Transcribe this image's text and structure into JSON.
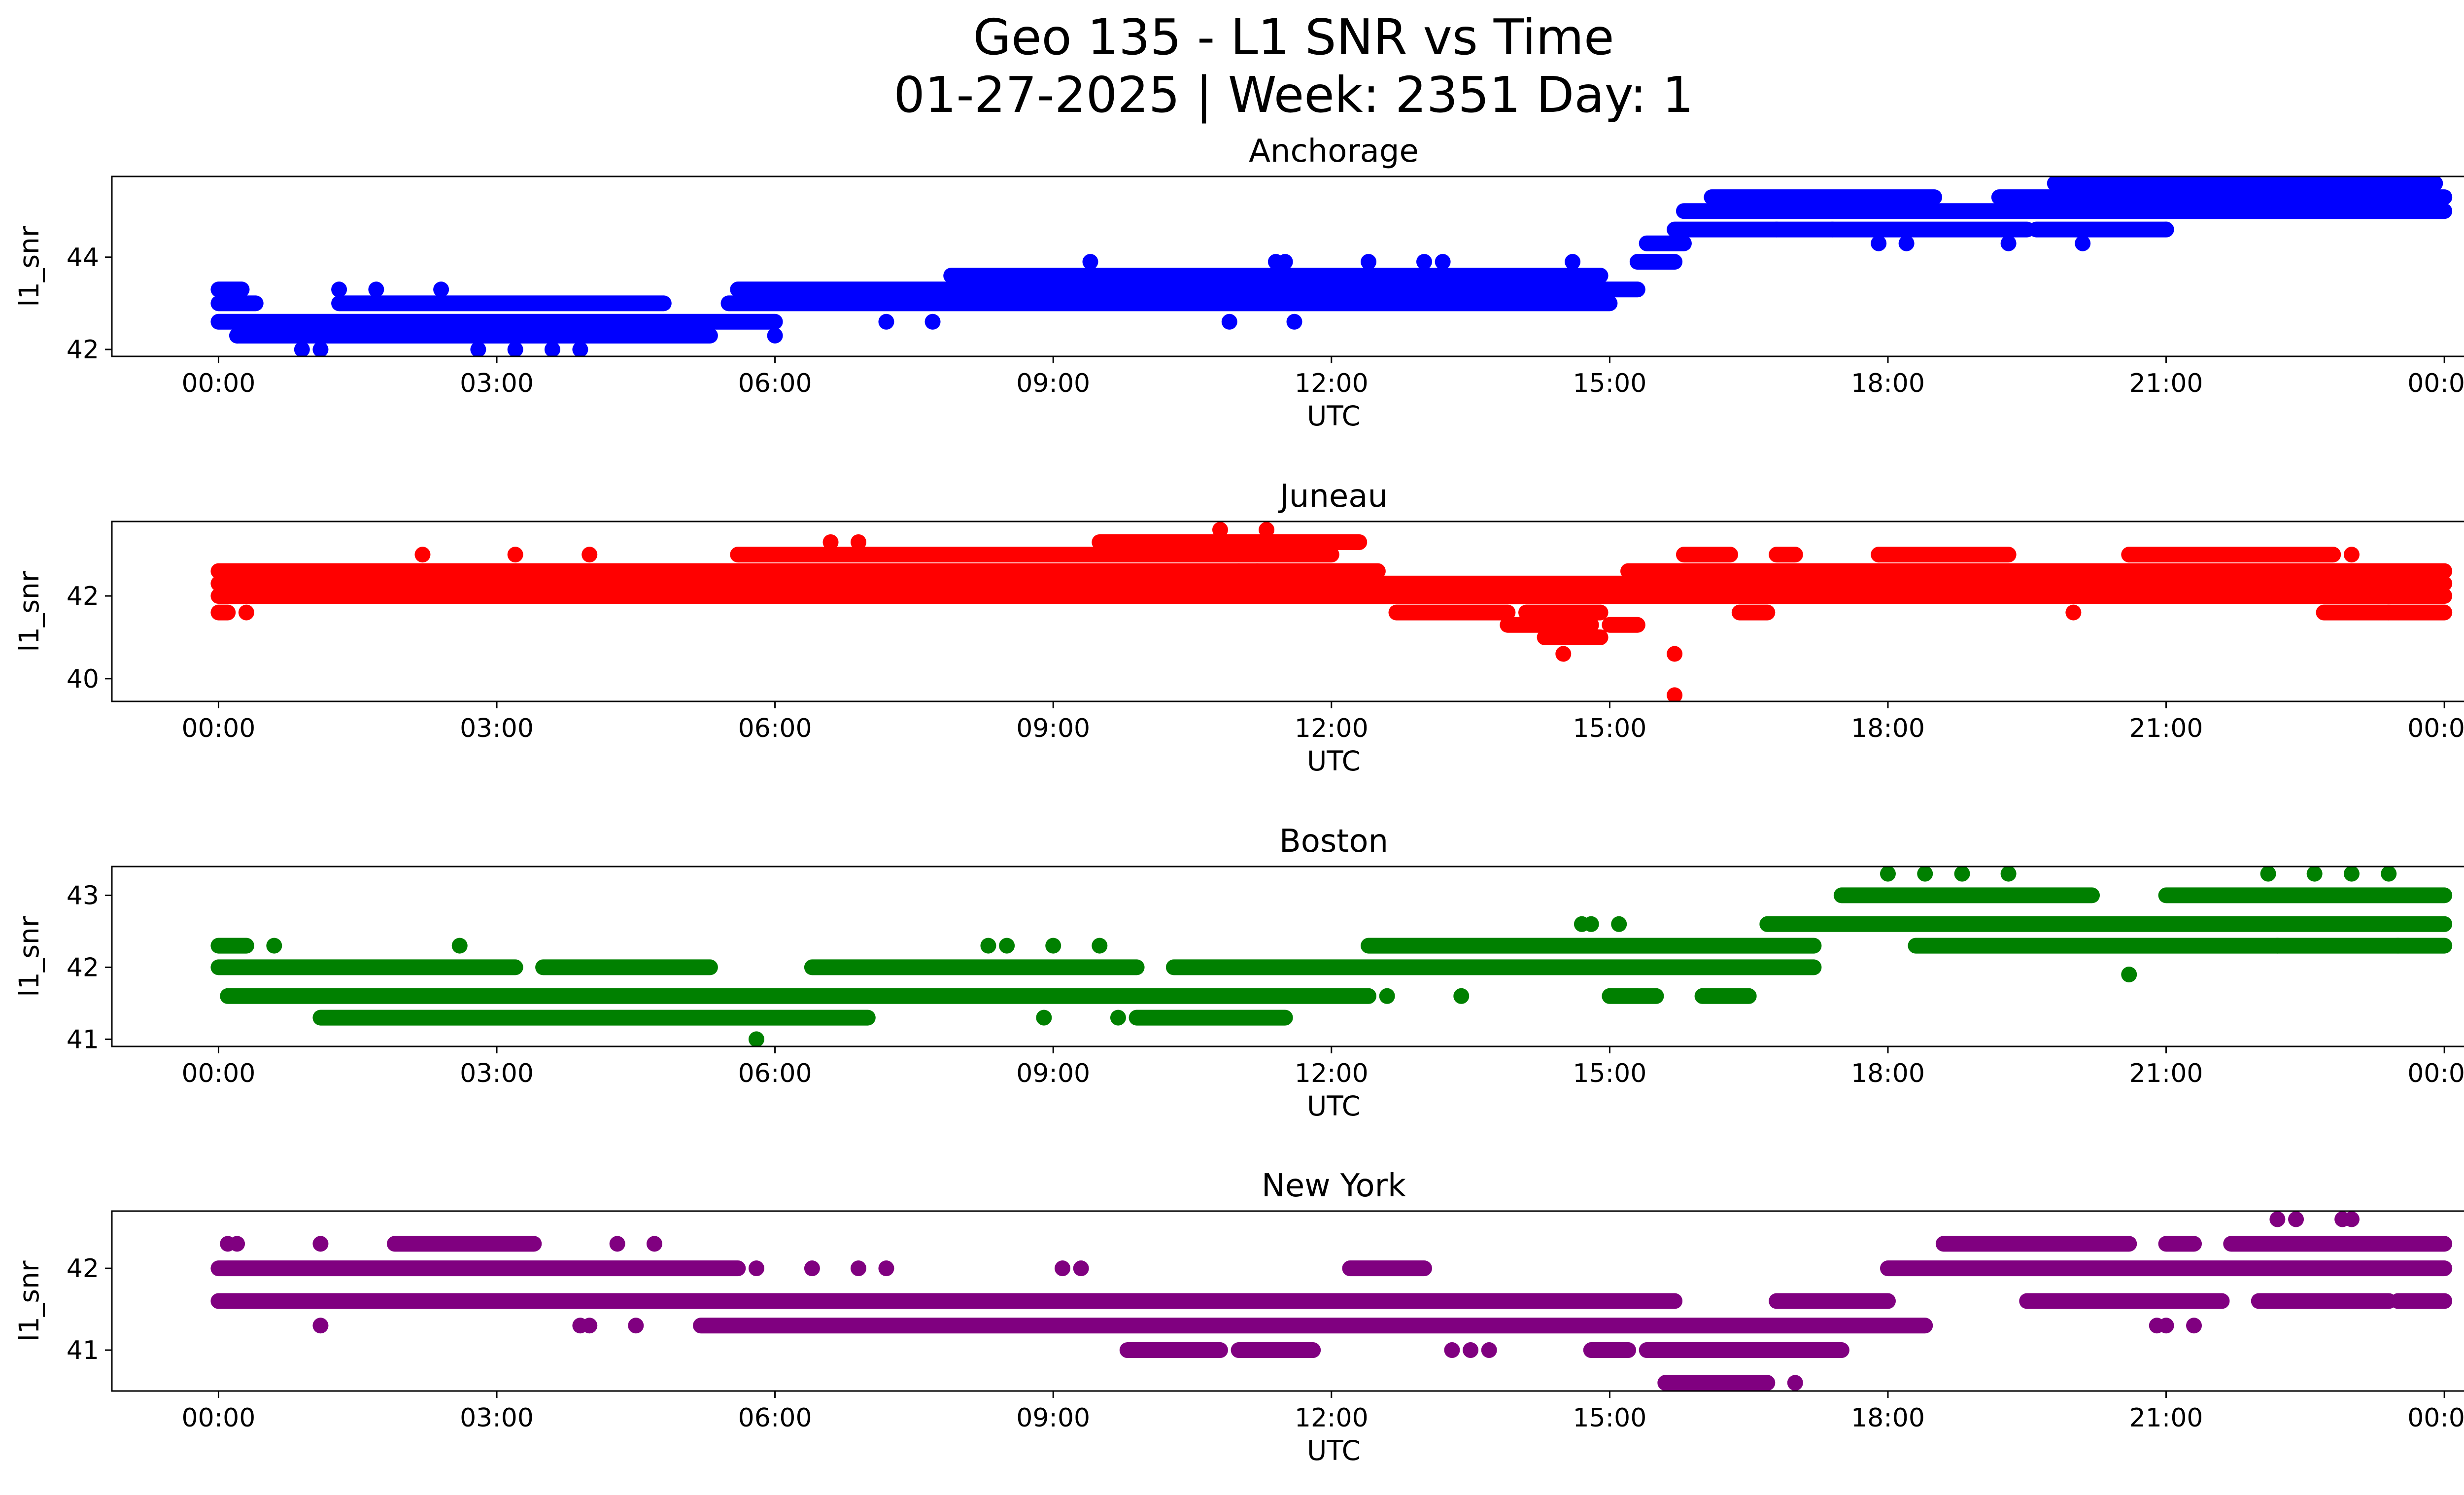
{
  "figure": {
    "title_line1": "Geo 135 - L1 SNR vs Time",
    "title_line2": "01-27-2025 | Week: 2351 Day: 1"
  },
  "chart_data": [
    {
      "type": "scatter",
      "title": "Anchorage",
      "xlabel": "UTC",
      "ylabel": "l1_snr",
      "color": "#0000ff",
      "xlim_hours": [
        -1.15,
        25.2
      ],
      "ylim": [
        41.85,
        45.75
      ],
      "xticks": [
        0,
        3,
        6,
        9,
        12,
        15,
        18,
        21,
        24
      ],
      "xtick_labels": [
        "00:00",
        "03:00",
        "06:00",
        "09:00",
        "12:00",
        "15:00",
        "18:00",
        "21:00",
        "00:00"
      ],
      "yticks": [
        42,
        44
      ],
      "ytick_labels": [
        "42",
        "44"
      ],
      "bands": [
        {
          "y": 43.3,
          "ranges": [
            [
              0.0,
              0.25
            ]
          ]
        },
        {
          "y": 43.0,
          "ranges": [
            [
              0.0,
              0.4
            ],
            [
              1.3,
              4.8
            ],
            [
              5.5,
              15.0
            ]
          ]
        },
        {
          "y": 42.6,
          "ranges": [
            [
              0.0,
              6.0
            ]
          ]
        },
        {
          "y": 42.3,
          "ranges": [
            [
              0.2,
              5.3
            ]
          ]
        },
        {
          "y": 43.3,
          "ranges": [
            [
              5.6,
              15.3
            ]
          ]
        },
        {
          "y": 43.6,
          "ranges": [
            [
              7.9,
              14.9
            ]
          ]
        },
        {
          "y": 43.9,
          "ranges": [
            [
              15.3,
              15.7
            ]
          ]
        },
        {
          "y": 44.3,
          "ranges": [
            [
              15.4,
              15.8
            ]
          ]
        },
        {
          "y": 44.6,
          "ranges": [
            [
              15.7,
              19.5
            ],
            [
              19.6,
              21.0
            ]
          ]
        },
        {
          "y": 45.0,
          "ranges": [
            [
              15.8,
              24.0
            ]
          ]
        },
        {
          "y": 45.3,
          "ranges": [
            [
              16.1,
              18.5
            ],
            [
              19.2,
              24.0
            ]
          ]
        },
        {
          "y": 45.6,
          "ranges": [
            [
              19.8,
              23.9
            ]
          ]
        }
      ],
      "points": [
        [
          0.9,
          42.0
        ],
        [
          1.1,
          42.0
        ],
        [
          2.8,
          42.0
        ],
        [
          3.2,
          42.0
        ],
        [
          3.6,
          42.0
        ],
        [
          3.9,
          42.0
        ],
        [
          0.2,
          42.3
        ],
        [
          6.0,
          42.3
        ],
        [
          7.2,
          42.6
        ],
        [
          7.7,
          42.6
        ],
        [
          1.3,
          43.3
        ],
        [
          1.7,
          43.3
        ],
        [
          2.4,
          43.3
        ],
        [
          9.4,
          43.9
        ],
        [
          11.4,
          43.9
        ],
        [
          11.5,
          43.9
        ],
        [
          12.4,
          43.9
        ],
        [
          13.0,
          43.9
        ],
        [
          13.2,
          43.9
        ],
        [
          14.6,
          43.9
        ],
        [
          10.9,
          42.6
        ],
        [
          11.6,
          42.6
        ],
        [
          16.8,
          44.6
        ],
        [
          17.4,
          44.6
        ],
        [
          17.9,
          44.3
        ],
        [
          18.2,
          44.3
        ],
        [
          19.3,
          44.3
        ],
        [
          20.1,
          44.3
        ],
        [
          21.0,
          44.6
        ]
      ]
    },
    {
      "type": "scatter",
      "title": "Juneau",
      "xlabel": "UTC",
      "ylabel": "l1_snr",
      "color": "#ff0000",
      "xlim_hours": [
        -1.15,
        25.2
      ],
      "ylim": [
        39.45,
        43.8
      ],
      "xticks": [
        0,
        3,
        6,
        9,
        12,
        15,
        18,
        21,
        24
      ],
      "xtick_labels": [
        "00:00",
        "03:00",
        "06:00",
        "09:00",
        "12:00",
        "15:00",
        "18:00",
        "21:00",
        "00:00"
      ],
      "yticks": [
        40,
        42
      ],
      "ytick_labels": [
        "40",
        "42"
      ],
      "bands": [
        {
          "y": 41.6,
          "ranges": [
            [
              0.0,
              0.1
            ],
            [
              12.7,
              13.9
            ],
            [
              14.1,
              14.9
            ],
            [
              16.4,
              16.7
            ],
            [
              22.7,
              24.0
            ]
          ]
        },
        {
          "y": 42.0,
          "ranges": [
            [
              0.0,
              24.0
            ]
          ]
        },
        {
          "y": 42.3,
          "ranges": [
            [
              0.0,
              24.0
            ]
          ]
        },
        {
          "y": 42.6,
          "ranges": [
            [
              0.0,
              12.5
            ],
            [
              15.2,
              24.0
            ]
          ]
        },
        {
          "y": 43.0,
          "ranges": [
            [
              5.6,
              12.0
            ],
            [
              15.8,
              16.3
            ],
            [
              16.8,
              17.0
            ],
            [
              17.9,
              19.3
            ],
            [
              20.6,
              22.8
            ]
          ]
        },
        {
          "y": 43.3,
          "ranges": [
            [
              9.5,
              12.3
            ]
          ]
        },
        {
          "y": 41.3,
          "ranges": [
            [
              13.9,
              14.8
            ],
            [
              15.0,
              15.3
            ]
          ]
        },
        {
          "y": 41.0,
          "ranges": [
            [
              14.3,
              14.9
            ]
          ]
        }
      ],
      "points": [
        [
          0.3,
          41.6
        ],
        [
          2.2,
          43.0
        ],
        [
          3.2,
          43.0
        ],
        [
          4.0,
          43.0
        ],
        [
          6.6,
          43.3
        ],
        [
          6.9,
          43.3
        ],
        [
          10.8,
          43.6
        ],
        [
          11.3,
          43.6
        ],
        [
          11.0,
          42.6
        ],
        [
          11.2,
          42.6
        ],
        [
          14.5,
          40.6
        ],
        [
          15.7,
          40.6
        ],
        [
          15.7,
          39.6
        ],
        [
          20.0,
          41.6
        ],
        [
          23.4,
          41.6
        ],
        [
          23.0,
          43.0
        ]
      ]
    },
    {
      "type": "scatter",
      "title": "Boston",
      "xlabel": "UTC",
      "ylabel": "l1_snr",
      "color": "#008000",
      "xlim_hours": [
        -1.15,
        25.2
      ],
      "ylim": [
        40.9,
        43.4
      ],
      "xticks": [
        0,
        3,
        6,
        9,
        12,
        15,
        18,
        21,
        24
      ],
      "xtick_labels": [
        "00:00",
        "03:00",
        "06:00",
        "09:00",
        "12:00",
        "15:00",
        "18:00",
        "21:00",
        "00:00"
      ],
      "yticks": [
        41,
        42,
        43
      ],
      "ytick_labels": [
        "41",
        "42",
        "43"
      ],
      "bands": [
        {
          "y": 42.3,
          "ranges": [
            [
              0.0,
              0.3
            ],
            [
              12.4,
              17.2
            ],
            [
              18.3,
              24.0
            ]
          ]
        },
        {
          "y": 42.0,
          "ranges": [
            [
              0.0,
              3.2
            ],
            [
              3.5,
              5.3
            ],
            [
              6.4,
              9.9
            ],
            [
              10.3,
              17.2
            ]
          ]
        },
        {
          "y": 41.6,
          "ranges": [
            [
              0.1,
              12.4
            ],
            [
              15.0,
              15.5
            ],
            [
              16.0,
              16.5
            ]
          ]
        },
        {
          "y": 41.3,
          "ranges": [
            [
              1.1,
              7.0
            ],
            [
              9.9,
              11.5
            ]
          ]
        },
        {
          "y": 42.6,
          "ranges": [
            [
              16.7,
              24.0
            ]
          ]
        },
        {
          "y": 43.0,
          "ranges": [
            [
              17.5,
              20.2
            ],
            [
              21.0,
              24.0
            ]
          ]
        }
      ],
      "points": [
        [
          0.6,
          42.3
        ],
        [
          2.6,
          42.3
        ],
        [
          8.3,
          42.3
        ],
        [
          8.5,
          42.3
        ],
        [
          9.0,
          42.3
        ],
        [
          9.5,
          42.3
        ],
        [
          5.8,
          41.0
        ],
        [
          8.9,
          41.3
        ],
        [
          9.7,
          41.3
        ],
        [
          12.6,
          41.6
        ],
        [
          13.4,
          41.6
        ],
        [
          14.7,
          42.6
        ],
        [
          14.8,
          42.6
        ],
        [
          15.1,
          42.6
        ],
        [
          18.0,
          43.3
        ],
        [
          18.4,
          43.3
        ],
        [
          18.8,
          43.3
        ],
        [
          19.3,
          43.3
        ],
        [
          22.1,
          43.3
        ],
        [
          22.6,
          43.3
        ],
        [
          23.0,
          43.3
        ],
        [
          23.4,
          43.3
        ],
        [
          20.6,
          41.9
        ],
        [
          22.2,
          42.3
        ],
        [
          23.5,
          42.3
        ]
      ]
    },
    {
      "type": "scatter",
      "title": "New York",
      "xlabel": "UTC",
      "ylabel": "l1_snr",
      "color": "#800080",
      "xlim_hours": [
        -1.15,
        25.2
      ],
      "ylim": [
        40.5,
        42.7
      ],
      "xticks": [
        0,
        3,
        6,
        9,
        12,
        15,
        18,
        21,
        24
      ],
      "xtick_labels": [
        "00:00",
        "03:00",
        "06:00",
        "09:00",
        "12:00",
        "15:00",
        "18:00",
        "21:00",
        "00:00"
      ],
      "yticks": [
        41,
        42
      ],
      "ytick_labels": [
        "41",
        "42"
      ],
      "bands": [
        {
          "y": 42.0,
          "ranges": [
            [
              0.0,
              5.6
            ],
            [
              12.2,
              13.0
            ],
            [
              18.0,
              24.0
            ]
          ]
        },
        {
          "y": 41.6,
          "ranges": [
            [
              0.0,
              15.7
            ],
            [
              16.8,
              18.0
            ],
            [
              19.5,
              21.6
            ],
            [
              22.0,
              23.4
            ],
            [
              23.5,
              24.0
            ]
          ]
        },
        {
          "y": 41.3,
          "ranges": [
            [
              5.2,
              18.4
            ]
          ]
        },
        {
          "y": 41.0,
          "ranges": [
            [
              9.8,
              10.8
            ],
            [
              11.0,
              11.8
            ],
            [
              14.8,
              15.2
            ],
            [
              15.4,
              17.5
            ]
          ]
        },
        {
          "y": 42.3,
          "ranges": [
            [
              1.9,
              3.4
            ],
            [
              18.6,
              20.6
            ],
            [
              21.0,
              21.3
            ],
            [
              21.7,
              24.0
            ]
          ]
        },
        {
          "y": 40.6,
          "ranges": [
            [
              15.6,
              16.7
            ]
          ]
        }
      ],
      "points": [
        [
          0.1,
          42.3
        ],
        [
          0.2,
          42.3
        ],
        [
          1.1,
          42.3
        ],
        [
          4.3,
          42.3
        ],
        [
          4.7,
          42.3
        ],
        [
          1.1,
          41.3
        ],
        [
          3.9,
          41.3
        ],
        [
          4.0,
          41.3
        ],
        [
          4.5,
          41.3
        ],
        [
          5.8,
          42.0
        ],
        [
          6.4,
          42.0
        ],
        [
          6.9,
          42.0
        ],
        [
          7.2,
          42.0
        ],
        [
          9.1,
          42.0
        ],
        [
          9.3,
          42.0
        ],
        [
          13.3,
          41.0
        ],
        [
          13.5,
          41.0
        ],
        [
          13.7,
          41.0
        ],
        [
          17.0,
          40.6
        ],
        [
          22.2,
          42.6
        ],
        [
          22.4,
          42.6
        ],
        [
          22.9,
          42.6
        ],
        [
          23.0,
          42.6
        ],
        [
          20.9,
          41.3
        ],
        [
          21.0,
          41.3
        ],
        [
          21.3,
          41.3
        ]
      ]
    }
  ]
}
